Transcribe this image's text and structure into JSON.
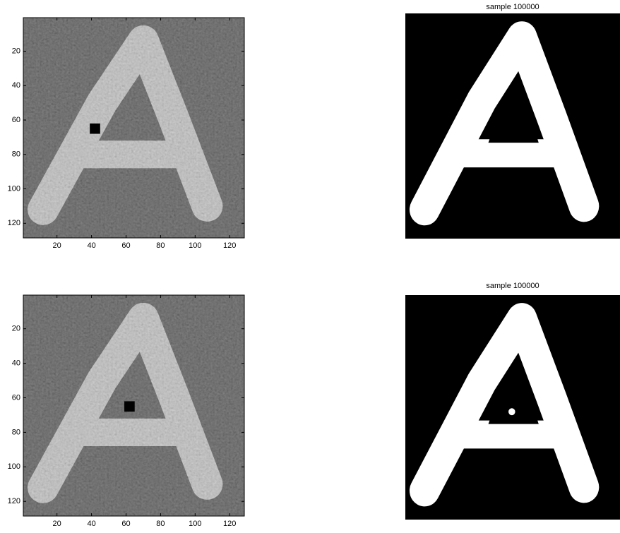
{
  "panels": [
    {
      "xlim": [
        0.5,
        128.5
      ],
      "ylim": [
        0.5,
        128.5
      ],
      "xticks": [
        20,
        40,
        60,
        80,
        100,
        120
      ],
      "yticks": [
        20,
        40,
        60,
        80,
        100,
        120
      ]
    },
    {
      "title": "sample 100000"
    },
    {
      "xlim": [
        0.5,
        128.5
      ],
      "ylim": [
        0.5,
        128.5
      ],
      "xticks": [
        20,
        40,
        60,
        80,
        100,
        120
      ],
      "yticks": [
        20,
        40,
        60,
        80,
        100,
        120
      ]
    },
    {
      "title": "sample 100000"
    }
  ]
}
